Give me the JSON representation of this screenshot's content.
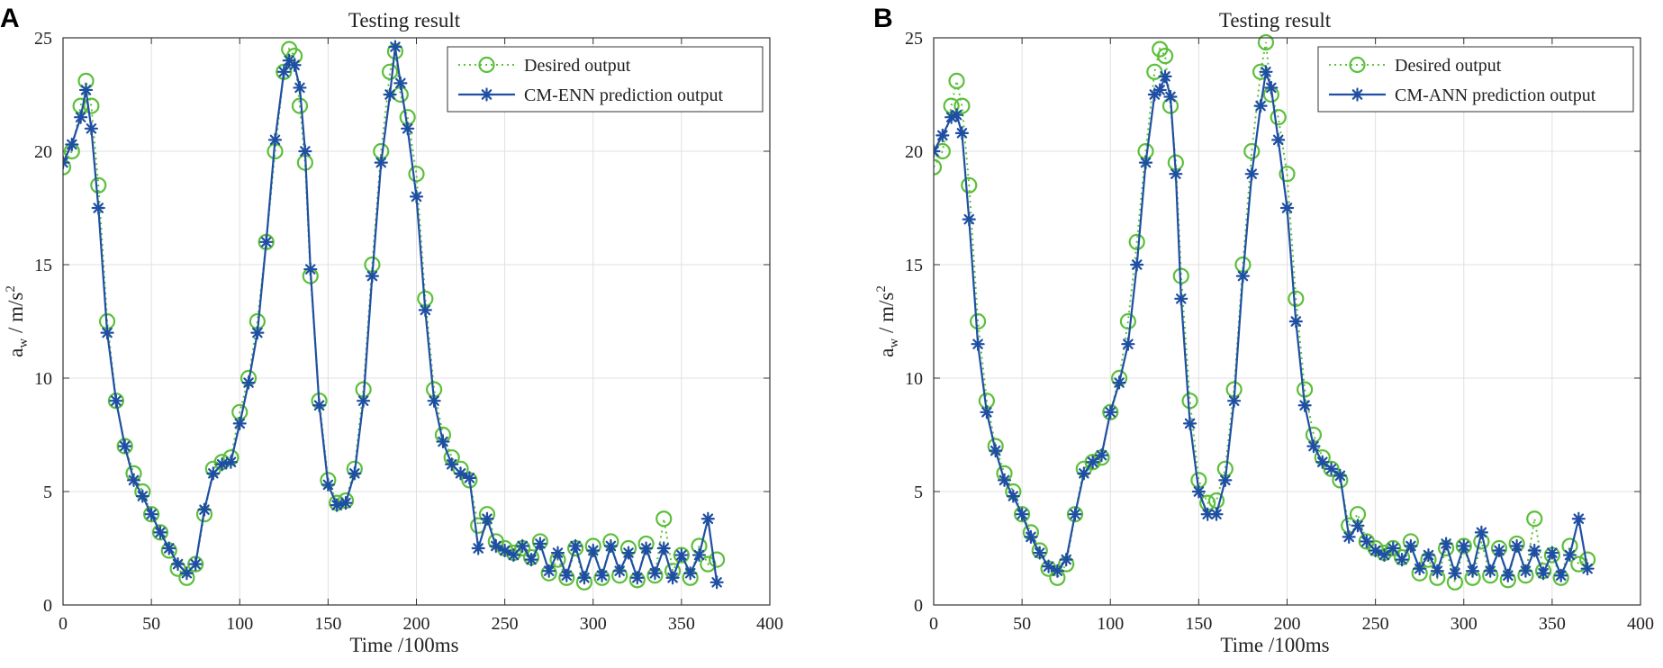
{
  "colors": {
    "desired": "#5cbf3a",
    "prediction": "#1f4fa3",
    "grid": "#e0e0e0",
    "axis": "#333333"
  },
  "chart_data": [
    {
      "panel_label": "A",
      "type": "line",
      "title": "Testing result",
      "xlabel": "Time  /100ms",
      "ylabel": "a_w / m/s^2",
      "ylabel_parts": {
        "a": "a",
        "w": "w",
        "mid": " / m/s",
        "exp": "2"
      },
      "xlim": [
        0,
        400
      ],
      "ylim": [
        0,
        25
      ],
      "xticks": [
        "0",
        "50",
        "100",
        "150",
        "200",
        "250",
        "300",
        "350",
        "400"
      ],
      "yticks": [
        "0",
        "5",
        "10",
        "15",
        "20",
        "25"
      ],
      "grid": true,
      "legend_position": "top-right",
      "series": [
        {
          "name": "Desired output",
          "style": "dotted-circle",
          "x": [
            0,
            5,
            10,
            13,
            16,
            20,
            25,
            30,
            35,
            40,
            45,
            50,
            55,
            60,
            65,
            70,
            75,
            80,
            85,
            90,
            95,
            100,
            105,
            110,
            115,
            120,
            125,
            128,
            131,
            134,
            137,
            140,
            145,
            150,
            155,
            160,
            165,
            170,
            175,
            180,
            185,
            188,
            191,
            195,
            200,
            205,
            210,
            215,
            220,
            225,
            230,
            235,
            240,
            245,
            250,
            255,
            260,
            265,
            270,
            275,
            280,
            285,
            290,
            295,
            300,
            305,
            310,
            315,
            320,
            325,
            330,
            335,
            340,
            345,
            350,
            355,
            360,
            365,
            370
          ],
          "values": [
            19.3,
            20.0,
            22.0,
            23.1,
            22.0,
            18.5,
            12.5,
            9.0,
            7.0,
            5.8,
            5.0,
            4.0,
            3.2,
            2.4,
            1.6,
            1.2,
            1.8,
            4.0,
            6.0,
            6.3,
            6.5,
            8.5,
            10.0,
            12.5,
            16.0,
            20.0,
            23.5,
            24.5,
            24.2,
            22.0,
            19.5,
            14.5,
            9.0,
            5.5,
            4.5,
            4.6,
            6.0,
            9.5,
            15.0,
            20.0,
            23.5,
            24.4,
            22.5,
            21.5,
            19.0,
            13.5,
            9.5,
            7.5,
            6.5,
            6.0,
            5.5,
            3.5,
            4.0,
            2.8,
            2.5,
            2.3,
            2.5,
            2.1,
            2.8,
            1.4,
            2.0,
            1.2,
            2.5,
            1.0,
            2.6,
            1.2,
            2.8,
            1.3,
            2.5,
            1.1,
            2.7,
            1.3,
            3.8,
            1.5,
            2.2,
            1.2,
            2.6,
            1.8,
            2.0
          ]
        },
        {
          "name": "CM-ENN prediction output",
          "style": "solid-asterisk",
          "x": [
            0,
            5,
            10,
            13,
            16,
            20,
            25,
            30,
            35,
            40,
            45,
            50,
            55,
            60,
            65,
            70,
            75,
            80,
            85,
            90,
            95,
            100,
            105,
            110,
            115,
            120,
            125,
            128,
            131,
            134,
            137,
            140,
            145,
            150,
            155,
            160,
            165,
            170,
            175,
            180,
            185,
            188,
            191,
            195,
            200,
            205,
            210,
            215,
            220,
            225,
            230,
            235,
            240,
            245,
            250,
            255,
            260,
            265,
            270,
            275,
            280,
            285,
            290,
            295,
            300,
            305,
            310,
            315,
            320,
            325,
            330,
            335,
            340,
            345,
            350,
            355,
            360,
            365,
            370
          ],
          "values": [
            19.5,
            20.3,
            21.5,
            22.7,
            21.0,
            17.5,
            12.0,
            9.0,
            7.0,
            5.5,
            4.8,
            4.0,
            3.2,
            2.5,
            1.8,
            1.4,
            1.8,
            4.2,
            5.8,
            6.2,
            6.3,
            8.0,
            9.8,
            12.0,
            16.0,
            20.5,
            23.5,
            24.0,
            23.8,
            22.8,
            20.0,
            14.8,
            8.8,
            5.3,
            4.4,
            4.5,
            5.8,
            9.0,
            14.5,
            19.5,
            22.5,
            24.6,
            23.0,
            21.0,
            18.0,
            13.0,
            9.0,
            7.2,
            6.2,
            5.8,
            5.6,
            2.5,
            3.8,
            2.6,
            2.4,
            2.2,
            2.6,
            2.0,
            2.7,
            1.5,
            2.3,
            1.3,
            2.6,
            1.2,
            2.4,
            1.3,
            2.6,
            1.5,
            2.3,
            1.2,
            2.5,
            1.4,
            2.5,
            1.2,
            2.2,
            1.4,
            2.2,
            3.8,
            1.0
          ]
        }
      ]
    },
    {
      "panel_label": "B",
      "type": "line",
      "title": "Testing result",
      "xlabel": "Time  /100ms",
      "ylabel": "a_w / m/s^2",
      "ylabel_parts": {
        "a": "a",
        "w": "w",
        "mid": " / m/s",
        "exp": "2"
      },
      "xlim": [
        0,
        400
      ],
      "ylim": [
        0,
        25
      ],
      "xticks": [
        "0",
        "50",
        "100",
        "150",
        "200",
        "250",
        "300",
        "350",
        "400"
      ],
      "yticks": [
        "0",
        "5",
        "10",
        "15",
        "20",
        "25"
      ],
      "grid": true,
      "legend_position": "top-right",
      "series": [
        {
          "name": "Desired output",
          "style": "dotted-circle",
          "x": [
            0,
            5,
            10,
            13,
            16,
            20,
            25,
            30,
            35,
            40,
            45,
            50,
            55,
            60,
            65,
            70,
            75,
            80,
            85,
            90,
            95,
            100,
            105,
            110,
            115,
            120,
            125,
            128,
            131,
            134,
            137,
            140,
            145,
            150,
            155,
            160,
            165,
            170,
            175,
            180,
            185,
            188,
            191,
            195,
            200,
            205,
            210,
            215,
            220,
            225,
            230,
            235,
            240,
            245,
            250,
            255,
            260,
            265,
            270,
            275,
            280,
            285,
            290,
            295,
            300,
            305,
            310,
            315,
            320,
            325,
            330,
            335,
            340,
            345,
            350,
            355,
            360,
            365,
            370
          ],
          "values": [
            19.3,
            20.0,
            22.0,
            23.1,
            22.0,
            18.5,
            12.5,
            9.0,
            7.0,
            5.8,
            5.0,
            4.0,
            3.2,
            2.4,
            1.6,
            1.2,
            1.8,
            4.0,
            6.0,
            6.3,
            6.5,
            8.5,
            10.0,
            12.5,
            16.0,
            20.0,
            23.5,
            24.5,
            24.2,
            22.0,
            19.5,
            14.5,
            9.0,
            5.5,
            4.5,
            4.6,
            6.0,
            9.5,
            15.0,
            20.0,
            23.5,
            24.8,
            22.5,
            21.5,
            19.0,
            13.5,
            9.5,
            7.5,
            6.5,
            6.0,
            5.5,
            3.5,
            4.0,
            2.8,
            2.5,
            2.3,
            2.5,
            2.1,
            2.8,
            1.4,
            2.0,
            1.2,
            2.5,
            1.0,
            2.6,
            1.2,
            2.8,
            1.3,
            2.5,
            1.1,
            2.7,
            1.3,
            3.8,
            1.5,
            2.2,
            1.2,
            2.6,
            1.8,
            2.0
          ]
        },
        {
          "name": "CM-ANN prediction output",
          "style": "solid-asterisk",
          "x": [
            0,
            5,
            10,
            13,
            16,
            20,
            25,
            30,
            35,
            40,
            45,
            50,
            55,
            60,
            65,
            70,
            75,
            80,
            85,
            90,
            95,
            100,
            105,
            110,
            115,
            120,
            125,
            128,
            131,
            134,
            137,
            140,
            145,
            150,
            155,
            160,
            165,
            170,
            175,
            180,
            185,
            188,
            191,
            195,
            200,
            205,
            210,
            215,
            220,
            225,
            230,
            235,
            240,
            245,
            250,
            255,
            260,
            265,
            270,
            275,
            280,
            285,
            290,
            295,
            300,
            305,
            310,
            315,
            320,
            325,
            330,
            335,
            340,
            345,
            350,
            355,
            360,
            365,
            370
          ],
          "values": [
            20.0,
            20.7,
            21.5,
            21.6,
            20.8,
            17.0,
            11.5,
            8.5,
            6.8,
            5.5,
            4.8,
            4.0,
            3.0,
            2.3,
            1.7,
            1.5,
            2.0,
            4.0,
            5.8,
            6.3,
            6.6,
            8.5,
            9.8,
            11.5,
            15.0,
            19.5,
            22.5,
            22.7,
            23.3,
            22.4,
            19.0,
            13.5,
            8.0,
            5.0,
            4.0,
            4.0,
            5.5,
            9.0,
            14.5,
            19.0,
            22.0,
            23.5,
            22.8,
            20.5,
            17.5,
            12.5,
            8.8,
            7.0,
            6.3,
            6.0,
            5.7,
            3.0,
            3.5,
            2.8,
            2.4,
            2.2,
            2.5,
            2.0,
            2.6,
            1.6,
            2.2,
            1.5,
            2.7,
            1.4,
            2.6,
            1.5,
            3.2,
            1.5,
            2.4,
            1.3,
            2.6,
            1.5,
            2.4,
            1.4,
            2.3,
            1.3,
            2.2,
            3.8,
            1.6
          ]
        }
      ]
    }
  ]
}
